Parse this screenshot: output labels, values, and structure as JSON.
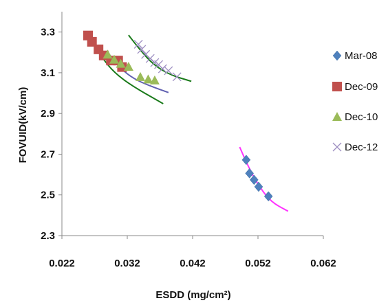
{
  "chart_data": {
    "type": "scatter",
    "xlabel": "ESDD (mg/cm²)",
    "ylabel": "FOVUID(kV/cm)",
    "xlim": [
      0.022,
      0.062
    ],
    "ylim": [
      2.3,
      3.4
    ],
    "xticks": [
      0.022,
      0.032,
      0.042,
      0.052,
      0.062
    ],
    "xtick_labels": [
      "0.022",
      "0.032",
      "0.042",
      "0.052",
      "0.062"
    ],
    "yticks": [
      2.3,
      2.5,
      2.7,
      2.9,
      3.1,
      3.3
    ],
    "ytick_labels": [
      "2.3",
      "2.5",
      "2.7",
      "2.9",
      "3.1",
      "3.3"
    ],
    "grid": false,
    "legend_position": "right",
    "series": [
      {
        "name": "Mar-08",
        "color": "#4F81BD",
        "marker": "diamond",
        "points": [
          [
            0.0502,
            2.672
          ],
          [
            0.0507,
            2.606
          ],
          [
            0.0514,
            2.574
          ],
          [
            0.0521,
            2.54
          ],
          [
            0.0536,
            2.493
          ]
        ],
        "trend": {
          "color": "#FF33FF",
          "points": [
            [
              0.0492,
              2.735
            ],
            [
              0.0505,
              2.64
            ],
            [
              0.052,
              2.55
            ],
            [
              0.054,
              2.465
            ],
            [
              0.0566,
              2.42
            ]
          ]
        }
      },
      {
        "name": "Dec-09",
        "color": "#C0504D",
        "marker": "square",
        "points": [
          [
            0.026,
            3.283
          ],
          [
            0.0266,
            3.252
          ],
          [
            0.0276,
            3.215
          ],
          [
            0.0284,
            3.185
          ],
          [
            0.0295,
            3.16
          ],
          [
            0.0306,
            3.16
          ],
          [
            0.0312,
            3.128
          ]
        ],
        "trend": {
          "color": "#1A7A1A",
          "points": [
            [
              0.026,
              3.28
            ],
            [
              0.028,
              3.18
            ],
            [
              0.03,
              3.1
            ],
            [
              0.033,
              3.03
            ],
            [
              0.0375,
              2.948
            ]
          ]
        }
      },
      {
        "name": "Dec-10",
        "color": "#9BBB59",
        "marker": "triangle",
        "points": [
          [
            0.029,
            3.19
          ],
          [
            0.03,
            3.165
          ],
          [
            0.031,
            3.145
          ],
          [
            0.0322,
            3.13
          ],
          [
            0.034,
            3.08
          ],
          [
            0.0352,
            3.068
          ],
          [
            0.0362,
            3.063
          ]
        ],
        "trend": {
          "color": "#5F5FB0",
          "points": [
            [
              0.029,
              3.2
            ],
            [
              0.031,
              3.12
            ],
            [
              0.033,
              3.07
            ],
            [
              0.0355,
              3.035
            ],
            [
              0.0383,
              3.003
            ]
          ]
        }
      },
      {
        "name": "Dec-12",
        "color": "#9E8FC2",
        "marker": "x",
        "points": [
          [
            0.0337,
            3.24
          ],
          [
            0.0342,
            3.215
          ],
          [
            0.0348,
            3.19
          ],
          [
            0.0355,
            3.17
          ],
          [
            0.0362,
            3.15
          ],
          [
            0.0368,
            3.14
          ],
          [
            0.0374,
            3.12
          ],
          [
            0.0383,
            3.11
          ],
          [
            0.0396,
            3.08
          ]
        ],
        "trend": {
          "color": "#1A7A1A",
          "points": [
            [
              0.0322,
              3.285
            ],
            [
              0.034,
              3.21
            ],
            [
              0.036,
              3.14
            ],
            [
              0.0385,
              3.09
            ],
            [
              0.0418,
              3.058
            ]
          ]
        }
      }
    ]
  }
}
